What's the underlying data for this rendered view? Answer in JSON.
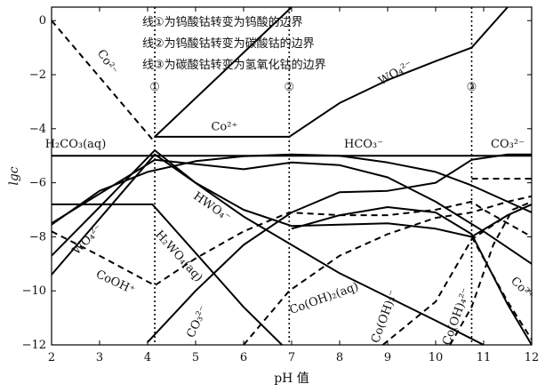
{
  "chart_data": {
    "type": "line",
    "xlabel": "pH 值",
    "ylabel": "lgc",
    "xlim": [
      2,
      12
    ],
    "ylim": [
      -12,
      0.5
    ],
    "xticks": [
      2,
      3,
      4,
      5,
      6,
      7,
      8,
      9,
      10,
      11,
      12
    ],
    "yticks": [
      0,
      -2,
      -4,
      -6,
      -8,
      -10,
      -12
    ],
    "legend_lines": [
      "线①为钨酸钴转变为钨酸的边界",
      "线②为钨酸钴转变为碳酸钴的边界",
      "线③为碳酸钴转变为氢氧化钴的边界"
    ],
    "boundaries": [
      {
        "label": "①",
        "x": 4.15
      },
      {
        "label": "②",
        "x": 6.95
      },
      {
        "label": "③",
        "x": 10.75
      }
    ],
    "series": [
      {
        "style": "solid",
        "points": [
          [
            4.15,
            -4.3
          ],
          [
            6.95,
            -4.3
          ],
          [
            8,
            -3.05
          ],
          [
            9,
            -2.2
          ],
          [
            10,
            -1.5
          ],
          [
            10.75,
            -1.0
          ],
          [
            11.5,
            0.5
          ]
        ]
      },
      {
        "style": "solid",
        "points": [
          [
            4.15,
            -4.3
          ],
          [
            7,
            0.5
          ]
        ]
      },
      {
        "style": "solid",
        "points": [
          [
            2,
            -8.7
          ],
          [
            3,
            -6.9
          ],
          [
            4.15,
            -4.8
          ],
          [
            5,
            -6.0
          ],
          [
            6,
            -7.0
          ],
          [
            7,
            -7.6
          ],
          [
            8,
            -7.55
          ],
          [
            9,
            -7.5
          ],
          [
            10,
            -7.7
          ],
          [
            10.75,
            -8.0
          ],
          [
            11.5,
            -7.2
          ],
          [
            12,
            -6.8
          ]
        ]
      },
      {
        "style": "solid",
        "points": [
          [
            2,
            -5.0
          ],
          [
            12,
            -5.0
          ]
        ]
      },
      {
        "style": "solid",
        "points": [
          [
            2,
            -9.4
          ],
          [
            4.15,
            -4.95
          ],
          [
            6,
            -7.25
          ],
          [
            8,
            -9.35
          ],
          [
            10,
            -11.1
          ],
          [
            11,
            -12
          ]
        ]
      },
      {
        "style": "solid",
        "points": [
          [
            2,
            -7.5
          ],
          [
            4.15,
            -5.15
          ],
          [
            6,
            -5.5
          ],
          [
            7,
            -5.25
          ],
          [
            8,
            -5.35
          ],
          [
            9,
            -5.8
          ],
          [
            10,
            -6.7
          ],
          [
            11,
            -7.8
          ],
          [
            12,
            -9.0
          ]
        ]
      },
      {
        "style": "solid",
        "points": [
          [
            2,
            -7.55
          ],
          [
            3,
            -6.3
          ],
          [
            4,
            -5.6
          ],
          [
            5,
            -5.2
          ],
          [
            6,
            -5.02
          ],
          [
            7,
            -4.95
          ],
          [
            8,
            -5.0
          ],
          [
            9,
            -5.25
          ],
          [
            10,
            -5.6
          ],
          [
            10.75,
            -6.1
          ],
          [
            11.5,
            -6.7
          ],
          [
            12,
            -7.1
          ]
        ]
      },
      {
        "style": "solid",
        "points": [
          [
            4,
            -11.9
          ],
          [
            5,
            -10.0
          ],
          [
            6,
            -8.3
          ],
          [
            7,
            -7.1
          ],
          [
            8,
            -6.35
          ],
          [
            9,
            -6.3
          ],
          [
            10,
            -6.0
          ],
          [
            10.75,
            -5.15
          ],
          [
            11.5,
            -4.95
          ],
          [
            12,
            -4.95
          ]
        ]
      },
      {
        "style": "solid",
        "points": [
          [
            2,
            -6.8
          ],
          [
            4.1,
            -6.8
          ],
          [
            5,
            -8.6
          ],
          [
            6,
            -10.6
          ],
          [
            6.8,
            -12
          ]
        ]
      },
      {
        "style": "solid",
        "points": [
          [
            7.0,
            -7.7
          ],
          [
            8,
            -7.2
          ],
          [
            9,
            -6.9
          ],
          [
            10,
            -7.1
          ],
          [
            10.75,
            -7.9
          ],
          [
            11.5,
            -10.5
          ],
          [
            12,
            -12
          ]
        ]
      },
      {
        "style": "dashed",
        "points": [
          [
            2,
            0
          ],
          [
            4.15,
            -4.5
          ]
        ]
      },
      {
        "style": "dashed",
        "points": [
          [
            2,
            -7.8
          ],
          [
            3,
            -8.7
          ],
          [
            4.15,
            -9.8
          ],
          [
            5,
            -8.8
          ],
          [
            6,
            -7.8
          ],
          [
            6.95,
            -7.1
          ],
          [
            8,
            -7.2
          ],
          [
            9,
            -7.2
          ],
          [
            10,
            -7.0
          ],
          [
            10.75,
            -6.7
          ],
          [
            11,
            -7.0
          ],
          [
            12,
            -8.0
          ]
        ]
      },
      {
        "style": "dashed",
        "points": [
          [
            6.0,
            -12
          ],
          [
            6.95,
            -10.0
          ],
          [
            8,
            -8.7
          ],
          [
            9,
            -7.9
          ],
          [
            10,
            -7.3
          ],
          [
            10.75,
            -7.1
          ],
          [
            11.5,
            -6.7
          ],
          [
            12,
            -6.5
          ]
        ]
      },
      {
        "style": "dashed",
        "points": [
          [
            8.9,
            -12
          ],
          [
            10,
            -10.4
          ],
          [
            10.75,
            -8.1
          ],
          [
            11.5,
            -7.2
          ],
          [
            12,
            -6.8
          ]
        ]
      },
      {
        "style": "dashed",
        "points": [
          [
            10.3,
            -12
          ],
          [
            10.75,
            -10.6
          ],
          [
            11.2,
            -8.3
          ],
          [
            11.6,
            -7.0
          ],
          [
            12,
            -6.7
          ]
        ]
      },
      {
        "style": "dashed",
        "points": [
          [
            10.75,
            -8.0
          ],
          [
            11.5,
            -10.4
          ],
          [
            12,
            -11.8
          ]
        ]
      },
      {
        "style": "dashed",
        "points": [
          [
            10.75,
            -5.85
          ],
          [
            11.5,
            -5.85
          ],
          [
            12,
            -5.85
          ]
        ]
      }
    ],
    "annotations": [
      {
        "text": "Co²⁻",
        "x": 3.1,
        "y": -1.6,
        "rotate": 57
      },
      {
        "text": "①",
        "x": 4.15,
        "y": -2.6
      },
      {
        "text": "②",
        "x": 6.95,
        "y": -2.6
      },
      {
        "text": "③",
        "x": 10.75,
        "y": -2.6
      },
      {
        "text": "WO₄²⁻",
        "x": 9.2,
        "y": -2.05,
        "rotate": -30
      },
      {
        "text": "Co²⁺",
        "x": 5.6,
        "y": -4.05
      },
      {
        "text": "H₂CO₃(aq)",
        "x": 2.5,
        "y": -4.7
      },
      {
        "text": "HCO₃⁻",
        "x": 8.5,
        "y": -4.7
      },
      {
        "text": "CO₃²⁻",
        "x": 11.5,
        "y": -4.7
      },
      {
        "text": "HWO₄⁻",
        "x": 5.3,
        "y": -7.0,
        "rotate": 35
      },
      {
        "text": "H₂WO₄(aq)",
        "x": 4.6,
        "y": -8.8,
        "rotate": 48
      },
      {
        "text": "WO₄²⁻",
        "x": 2.8,
        "y": -8.2,
        "rotate": -45
      },
      {
        "text": "CoOH⁺",
        "x": 3.3,
        "y": -9.8,
        "rotate": 25
      },
      {
        "text": "CO₃²⁻",
        "x": 5.1,
        "y": -11.2,
        "rotate": -65
      },
      {
        "text": "Co(OH)₂(aq)",
        "x": 7.7,
        "y": -10.4,
        "rotate": -20
      },
      {
        "text": "Co(OH)₃⁻",
        "x": 9.0,
        "y": -11.0,
        "rotate": -70
      },
      {
        "text": "Co(OH)₄²⁻",
        "x": 10.5,
        "y": -11.0,
        "rotate": -70
      },
      {
        "text": "Co²⁺",
        "x": 11.75,
        "y": -10.0,
        "rotate": 45
      }
    ]
  }
}
